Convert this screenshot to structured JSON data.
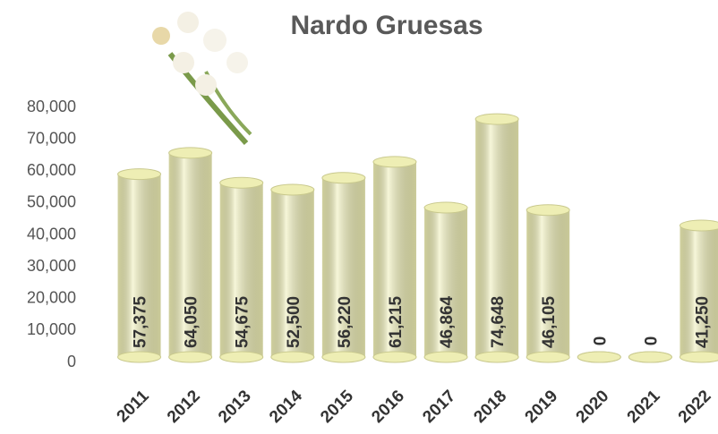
{
  "chart_data": {
    "type": "bar",
    "title": "Nardo Gruesas",
    "categories": [
      "2011",
      "2012",
      "2013",
      "2014",
      "2015",
      "2016",
      "2017",
      "2018",
      "2019",
      "2020",
      "2021",
      "2022"
    ],
    "values": [
      57375,
      64050,
      54675,
      52500,
      56220,
      61215,
      46864,
      74648,
      46105,
      0,
      0,
      41250
    ],
    "value_labels": [
      "57,375",
      "64,050",
      "54,675",
      "52,500",
      "56,220",
      "61,215",
      "46,864",
      "74,648",
      "46,105",
      "0",
      "0",
      "41,250"
    ],
    "color": "#eeeeb4",
    "ylim": [
      0,
      80000
    ],
    "yticks": [
      0,
      {
        "value": 10000,
        "label": "10,000"
      },
      {
        "value": 20000,
        "label": "20,000"
      },
      {
        "value": 30000,
        "label": "30,000"
      },
      {
        "value": 40000,
        "label": "40,000"
      },
      {
        "value": 50000,
        "label": "50,000"
      },
      {
        "value": 60000,
        "label": "60,000"
      },
      {
        "value": 70000,
        "label": "70,000"
      },
      {
        "value": 80000,
        "label": "80,000"
      }
    ],
    "grid": false
  }
}
